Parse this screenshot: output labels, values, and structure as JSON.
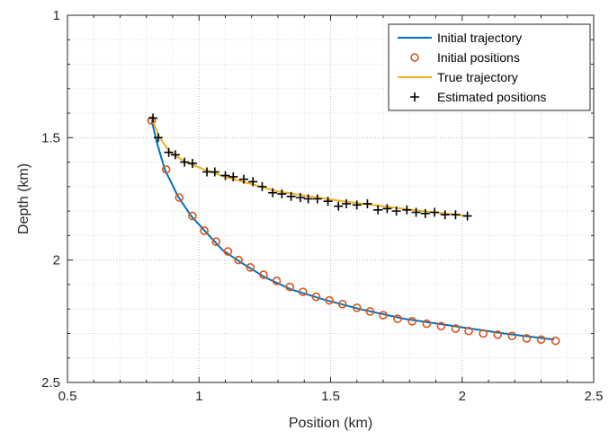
{
  "chart_data": {
    "type": "line",
    "xlabel": "Position (km)",
    "ylabel": "Depth (km)",
    "xlim": [
      0.5,
      2.5
    ],
    "ylim": [
      1,
      2.5
    ],
    "y_reversed": true,
    "xticks": [
      "0.5",
      "1",
      "1.5",
      "2",
      "2.5"
    ],
    "yticks": [
      "1",
      "1.5",
      "2",
      "2.5"
    ],
    "grid": "dotted, major and minor",
    "legend_position": "top-right",
    "series": [
      {
        "name": "Initial trajectory",
        "style": "line",
        "color": "#0072BD",
        "x": [
          0.82,
          0.84,
          0.87,
          0.92,
          0.97,
          1.03,
          1.09,
          1.16,
          1.25,
          1.35,
          1.47,
          1.61,
          1.78,
          1.97,
          2.16,
          2.35
        ],
        "y": [
          1.43,
          1.52,
          1.63,
          1.74,
          1.82,
          1.89,
          1.96,
          2.01,
          2.07,
          2.12,
          2.16,
          2.2,
          2.24,
          2.27,
          2.3,
          2.325
        ]
      },
      {
        "name": "Initial positions",
        "style": "markers-circle",
        "color": "#D95319",
        "x": [
          0.82,
          0.875,
          0.925,
          0.975,
          1.02,
          1.065,
          1.11,
          1.15,
          1.195,
          1.245,
          1.295,
          1.345,
          1.395,
          1.445,
          1.495,
          1.545,
          1.6,
          1.65,
          1.7,
          1.755,
          1.81,
          1.865,
          1.92,
          1.975,
          2.025,
          2.08,
          2.135,
          2.19,
          2.245,
          2.3,
          2.355
        ],
        "y": [
          1.43,
          1.63,
          1.745,
          1.82,
          1.88,
          1.925,
          1.965,
          2.0,
          2.03,
          2.06,
          2.085,
          2.11,
          2.13,
          2.15,
          2.165,
          2.18,
          2.195,
          2.21,
          2.225,
          2.24,
          2.25,
          2.26,
          2.27,
          2.28,
          2.29,
          2.3,
          2.305,
          2.31,
          2.32,
          2.325,
          2.33
        ]
      },
      {
        "name": "True trajectory",
        "style": "line",
        "color": "#EDB120",
        "x": [
          0.82,
          0.85,
          0.89,
          0.95,
          1.02,
          1.1,
          1.2,
          1.3,
          1.42,
          1.55,
          1.7,
          1.85,
          2.02
        ],
        "y": [
          1.42,
          1.5,
          1.56,
          1.6,
          1.63,
          1.66,
          1.69,
          1.72,
          1.74,
          1.76,
          1.78,
          1.8,
          1.82
        ]
      },
      {
        "name": "Estimated positions",
        "style": "markers-plus",
        "color": "#000000",
        "x": [
          0.825,
          0.845,
          0.885,
          0.91,
          0.945,
          0.975,
          1.03,
          1.06,
          1.1,
          1.13,
          1.17,
          1.205,
          1.24,
          1.28,
          1.315,
          1.35,
          1.385,
          1.415,
          1.45,
          1.49,
          1.53,
          1.56,
          1.6,
          1.64,
          1.68,
          1.715,
          1.75,
          1.79,
          1.825,
          1.86,
          1.895,
          1.935,
          1.975,
          2.02
        ],
        "y": [
          1.42,
          1.5,
          1.56,
          1.57,
          1.6,
          1.605,
          1.64,
          1.64,
          1.655,
          1.66,
          1.67,
          1.68,
          1.7,
          1.725,
          1.73,
          1.74,
          1.745,
          1.75,
          1.75,
          1.76,
          1.78,
          1.77,
          1.775,
          1.77,
          1.795,
          1.79,
          1.8,
          1.795,
          1.805,
          1.81,
          1.805,
          1.815,
          1.815,
          1.82
        ]
      }
    ]
  }
}
